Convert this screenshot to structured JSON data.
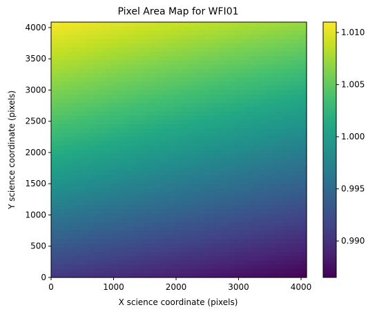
{
  "chart_data": {
    "type": "heatmap",
    "title": "Pixel Area Map for WFI01",
    "xlabel": "X science coordinate (pixels)",
    "ylabel": "Y science coordinate (pixels)",
    "xlim": [
      0,
      4088
    ],
    "ylim": [
      0,
      4088
    ],
    "xticks": [
      0,
      1000,
      2000,
      3000,
      4000
    ],
    "yticks": [
      0,
      500,
      1000,
      1500,
      2000,
      2500,
      3000,
      3500,
      4000
    ],
    "colormap": "viridis",
    "colorbar": {
      "range": [
        0.9865,
        1.011
      ],
      "ticks": [
        "0.990",
        "0.995",
        "1.000",
        "1.005",
        "1.010"
      ],
      "tick_values": [
        0.99,
        0.995,
        1.0,
        1.005,
        1.01
      ]
    },
    "corner_values": {
      "bottom_left": 0.9905,
      "bottom_right": 0.9866,
      "top_left": 1.0108,
      "top_right": 1.0072
    },
    "grid": false
  }
}
